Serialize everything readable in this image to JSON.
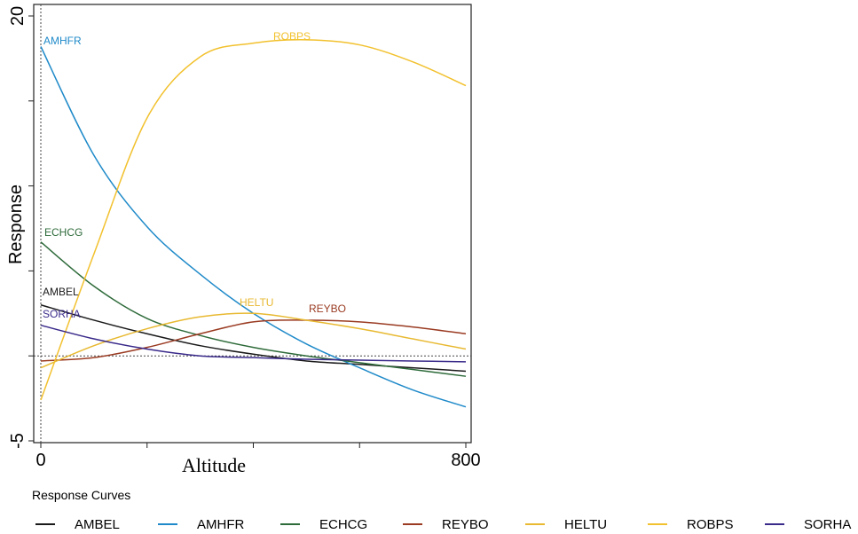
{
  "chart_data": {
    "type": "line",
    "xlabel": "Altitude",
    "ylabel": "Response",
    "xlim": [
      0,
      800
    ],
    "ylim": [
      -5,
      20
    ],
    "x_ticks_labeled": [
      0,
      800
    ],
    "y_ticks_labeled": [
      20,
      -5
    ],
    "grid": false,
    "reference_lines": {
      "horizontal": 0,
      "vertical": 0
    },
    "legend_title": "Response Curves",
    "legend_position": "bottom",
    "series": [
      {
        "name": "AMBEL",
        "color": "#1a1a1a",
        "x": [
          0,
          100,
          200,
          300,
          400,
          500,
          600,
          700,
          800
        ],
        "y": [
          3,
          2.1,
          1.3,
          0.6,
          0.1,
          -0.3,
          -0.5,
          -0.7,
          -0.9
        ]
      },
      {
        "name": "AMHFR",
        "color": "#1f8ac9",
        "x": [
          0,
          100,
          200,
          300,
          400,
          500,
          600,
          700,
          800
        ],
        "y": [
          18.2,
          11.8,
          7.6,
          4.8,
          2.5,
          0.7,
          -0.7,
          -2.0,
          -3.0
        ]
      },
      {
        "name": "ECHCG",
        "color": "#2e6b3a",
        "x": [
          0,
          100,
          200,
          300,
          400,
          500,
          600,
          700,
          800
        ],
        "y": [
          6.7,
          4.1,
          2.2,
          1.2,
          0.5,
          0.0,
          -0.4,
          -0.8,
          -1.2
        ]
      },
      {
        "name": "REYBO",
        "color": "#9a3b22",
        "x": [
          0,
          100,
          200,
          300,
          400,
          500,
          600,
          700,
          800
        ],
        "y": [
          -0.3,
          -0.1,
          0.5,
          1.3,
          2.0,
          2.1,
          2.0,
          1.7,
          1.3
        ]
      },
      {
        "name": "HELTU",
        "color": "#e8b931",
        "x": [
          0,
          100,
          200,
          300,
          400,
          500,
          600,
          700,
          800
        ],
        "y": [
          -0.7,
          0.6,
          1.6,
          2.3,
          2.5,
          2.1,
          1.6,
          1.0,
          0.4
        ]
      },
      {
        "name": "ROBPS",
        "color": "#f2c12e",
        "x": [
          0,
          100,
          200,
          300,
          400,
          500,
          600,
          700,
          800
        ],
        "y": [
          -2.6,
          6.0,
          14.0,
          17.6,
          18.4,
          18.6,
          18.3,
          17.3,
          15.9
        ]
      },
      {
        "name": "SORHA",
        "color": "#3a2a8a",
        "x": [
          0,
          100,
          200,
          300,
          400,
          500,
          600,
          700,
          800
        ],
        "y": [
          1.8,
          1.0,
          0.4,
          0.0,
          -0.1,
          -0.2,
          -0.25,
          -0.3,
          -0.35
        ]
      }
    ],
    "annotations": [
      {
        "text": "AMHFR",
        "series": "AMHFR"
      },
      {
        "text": "ROBPS",
        "series": "ROBPS"
      },
      {
        "text": "ECHCG",
        "series": "ECHCG"
      },
      {
        "text": "AMBEL",
        "series": "AMBEL"
      },
      {
        "text": "SORHA",
        "series": "SORHA"
      },
      {
        "text": "HELTU",
        "series": "HELTU"
      },
      {
        "text": "REYBO",
        "series": "REYBO"
      }
    ]
  }
}
